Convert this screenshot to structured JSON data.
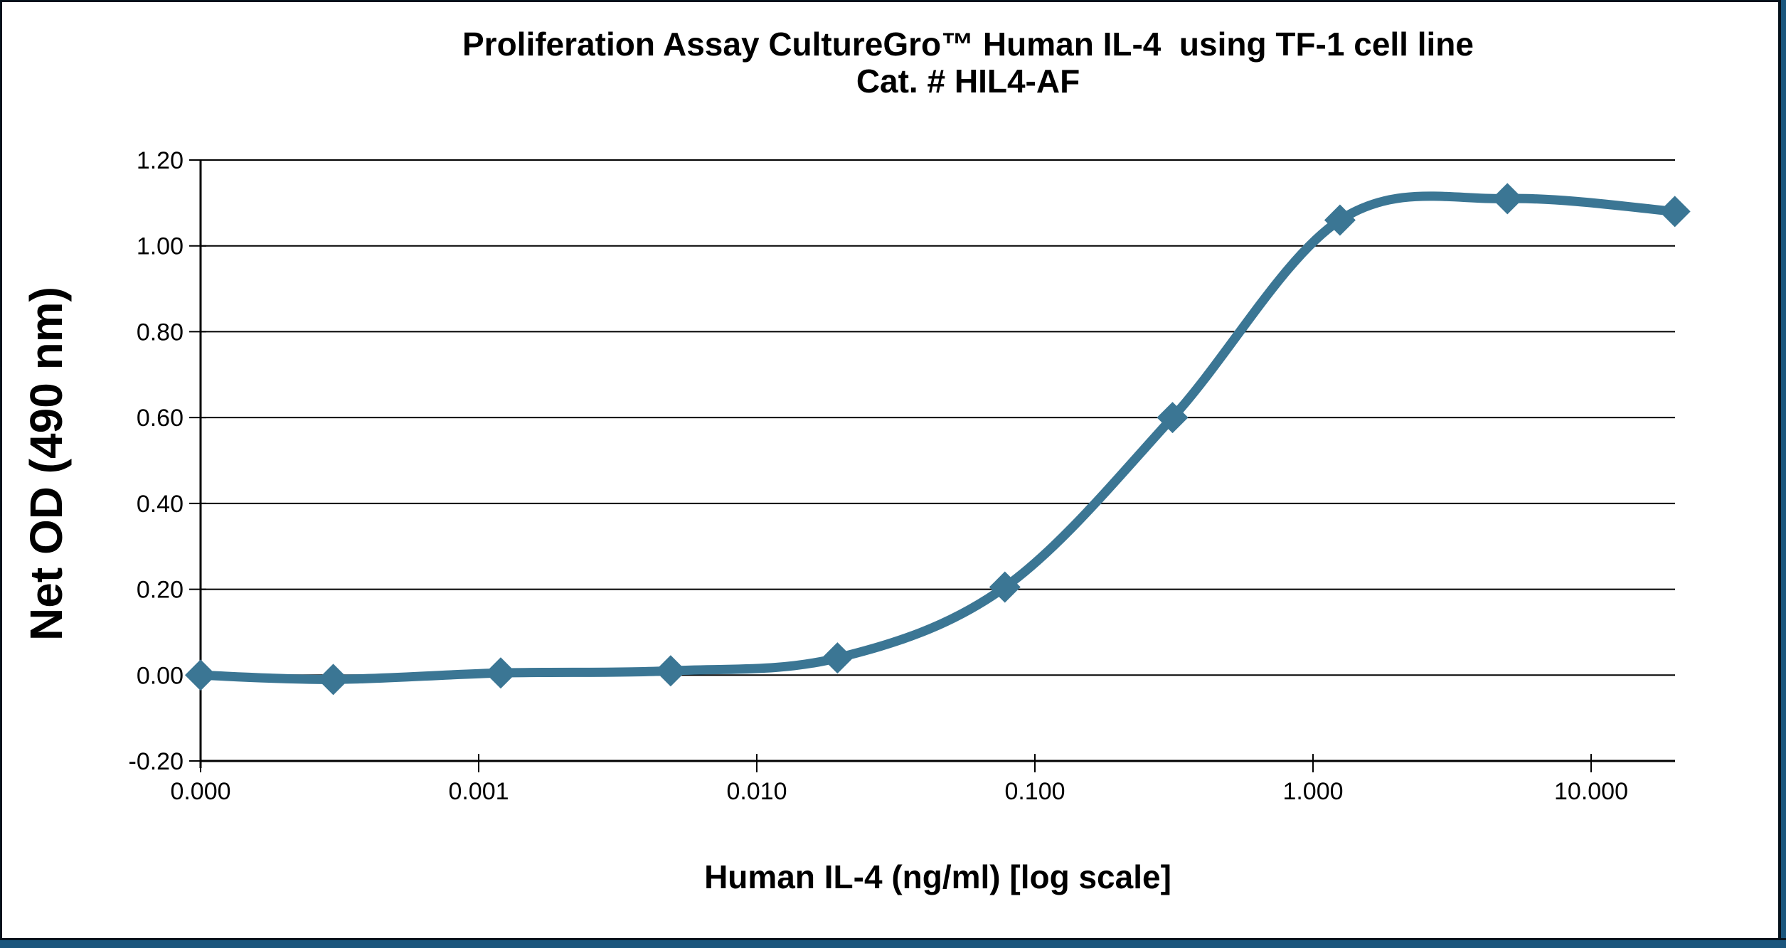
{
  "chart_data": {
    "type": "line",
    "title": "Proliferation Assay CultureGro™ Human IL-4  using TF-1 cell line",
    "subtitle": "Cat. # HIL4-AF",
    "xlabel": "Human IL-4 (ng/ml) [log scale]",
    "ylabel": "Net OD (490 nm)",
    "x_scale": "log",
    "x": [
      0,
      0.0003,
      0.0012,
      0.0049,
      0.0195,
      0.078,
      0.3125,
      1.25,
      5,
      20
    ],
    "y": [
      0.0,
      -0.01,
      0.005,
      0.01,
      0.04,
      0.205,
      0.6,
      1.06,
      1.11,
      1.08
    ],
    "x_tick_values": [
      0,
      0.001,
      0.01,
      0.1,
      1,
      10
    ],
    "x_tick_labels": [
      "0.000",
      "0.001",
      "0.010",
      "0.100",
      "1.000",
      "10.000"
    ],
    "y_tick_values": [
      -0.2,
      0.0,
      0.2,
      0.4,
      0.6,
      0.8,
      1.0,
      1.2
    ],
    "y_tick_labels": [
      "-0.20",
      "0.00",
      "0.20",
      "0.40",
      "0.60",
      "0.80",
      "1.00",
      "1.20"
    ],
    "ylim": [
      -0.2,
      1.2
    ],
    "grid": "horizontal",
    "legend": "none",
    "marker": "diamond",
    "series_color": "#3b7694",
    "axis_color": "#000000",
    "frame_color": "#1b567d",
    "background_color": "#ffffff"
  }
}
